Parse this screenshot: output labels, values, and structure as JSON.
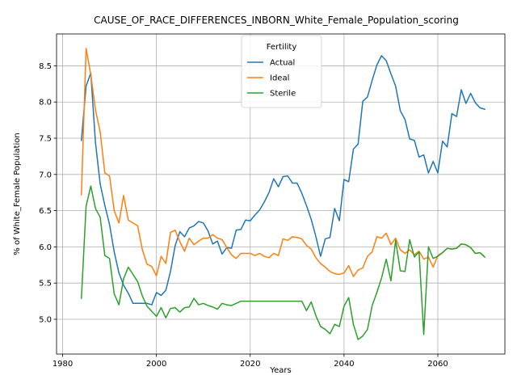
{
  "chart_data": {
    "type": "line",
    "title": "CAUSE_OF_RACE_DIFFERENCES_INBORN_White_Female_Population_scoring",
    "xlabel": "Years",
    "ylabel": "% of White_Female Population",
    "xlim": [
      1978.7,
      2074.3
    ],
    "ylim": [
      4.52,
      8.94
    ],
    "xticks": [
      1980,
      2000,
      2020,
      2040,
      2060
    ],
    "yticks": [
      5.0,
      5.5,
      6.0,
      6.5,
      7.0,
      7.5,
      8.0,
      8.5
    ],
    "xtick_labels": [
      "1980",
      "2000",
      "2020",
      "2040",
      "2060"
    ],
    "ytick_labels": [
      "5.0",
      "5.5",
      "6.0",
      "6.5",
      "7.0",
      "7.5",
      "8.0",
      "8.5"
    ],
    "grid": true,
    "legend": {
      "title": "Fertility",
      "position": "upper-center"
    },
    "x": [
      1984,
      1985,
      1986,
      1987,
      1988,
      1989,
      1990,
      1991,
      1992,
      1993,
      1994,
      1995,
      1996,
      1997,
      1998,
      1999,
      2000,
      2001,
      2002,
      2003,
      2004,
      2005,
      2006,
      2007,
      2008,
      2009,
      2010,
      2011,
      2012,
      2013,
      2014,
      2015,
      2016,
      2017,
      2018,
      2019,
      2020,
      2021,
      2022,
      2023,
      2024,
      2025,
      2026,
      2027,
      2028,
      2029,
      2030,
      2031,
      2032,
      2033,
      2034,
      2035,
      2036,
      2037,
      2038,
      2039,
      2040,
      2041,
      2042,
      2043,
      2044,
      2045,
      2046,
      2047,
      2048,
      2049,
      2050,
      2051,
      2052,
      2053,
      2054,
      2055,
      2056,
      2057,
      2058,
      2059,
      2060,
      2061,
      2062,
      2063,
      2064,
      2065,
      2066,
      2067,
      2068,
      2069,
      2070
    ],
    "series": [
      {
        "name": "Actual",
        "color": "#1f77b4",
        "values": [
          7.47,
          8.22,
          8.4,
          7.44,
          6.87,
          6.57,
          6.31,
          5.93,
          5.64,
          5.47,
          5.36,
          5.22,
          5.22,
          5.22,
          5.22,
          5.2,
          5.37,
          5.33,
          5.4,
          5.66,
          6.02,
          6.21,
          6.14,
          6.26,
          6.29,
          6.35,
          6.33,
          6.22,
          6.04,
          6.08,
          5.9,
          5.99,
          5.98,
          6.23,
          6.24,
          6.37,
          6.36,
          6.44,
          6.51,
          6.62,
          6.75,
          6.94,
          6.83,
          6.97,
          6.98,
          6.88,
          6.88,
          6.74,
          6.57,
          6.38,
          6.14,
          5.87,
          6.11,
          6.13,
          6.53,
          6.36,
          6.93,
          6.9,
          7.35,
          7.42,
          8.01,
          8.07,
          8.3,
          8.51,
          8.64,
          8.57,
          8.39,
          8.22,
          7.88,
          7.76,
          7.49,
          7.47,
          7.24,
          7.27,
          7.02,
          7.18,
          7.02,
          7.46,
          7.38,
          7.84,
          7.8,
          8.17,
          7.98,
          8.12,
          7.99,
          7.92,
          7.9
        ]
      },
      {
        "name": "Ideal",
        "color": "#ff7f0e",
        "values": [
          6.72,
          8.74,
          8.38,
          7.89,
          7.59,
          7.02,
          6.98,
          6.5,
          6.33,
          6.71,
          6.37,
          6.33,
          6.29,
          5.96,
          5.76,
          5.73,
          5.6,
          5.87,
          5.77,
          6.2,
          6.23,
          6.07,
          5.94,
          6.12,
          6.03,
          6.08,
          6.12,
          6.12,
          6.17,
          6.12,
          6.1,
          5.99,
          5.89,
          5.84,
          5.91,
          5.91,
          5.91,
          5.88,
          5.91,
          5.87,
          5.85,
          5.91,
          5.88,
          6.11,
          6.09,
          6.14,
          6.13,
          6.11,
          6.02,
          5.97,
          5.85,
          5.77,
          5.72,
          5.66,
          5.63,
          5.62,
          5.64,
          5.74,
          5.59,
          5.68,
          5.71,
          5.87,
          5.93,
          6.14,
          6.12,
          6.19,
          6.03,
          6.12,
          5.96,
          5.91,
          5.96,
          5.89,
          5.94,
          5.83,
          5.86,
          5.72,
          5.88,
          5.92,
          5.98,
          5.97,
          5.98,
          6.04,
          6.03,
          5.99,
          5.91,
          5.92,
          5.86
        ]
      },
      {
        "name": "Sterile",
        "color": "#2ca02c",
        "values": [
          5.29,
          6.56,
          6.84,
          6.53,
          6.41,
          5.88,
          5.84,
          5.35,
          5.2,
          5.56,
          5.72,
          5.62,
          5.52,
          5.32,
          5.18,
          5.11,
          5.04,
          5.16,
          5.02,
          5.15,
          5.16,
          5.1,
          5.16,
          5.17,
          5.29,
          5.2,
          5.22,
          5.19,
          5.17,
          5.14,
          5.22,
          5.2,
          5.19,
          5.22,
          5.25,
          5.25,
          5.25,
          5.25,
          5.25,
          5.25,
          5.25,
          5.25,
          5.25,
          5.25,
          5.25,
          5.25,
          5.25,
          5.25,
          5.12,
          5.24,
          5.05,
          4.9,
          4.86,
          4.8,
          4.93,
          4.9,
          5.18,
          5.3,
          4.93,
          4.72,
          4.77,
          4.86,
          5.19,
          5.37,
          5.57,
          5.83,
          5.53,
          6.09,
          5.67,
          5.66,
          6.1,
          5.86,
          5.93,
          4.79,
          6.0,
          5.84,
          5.87,
          5.92,
          5.98,
          5.97,
          5.98,
          6.04,
          6.03,
          5.99,
          5.91,
          5.92,
          5.86
        ]
      }
    ]
  }
}
